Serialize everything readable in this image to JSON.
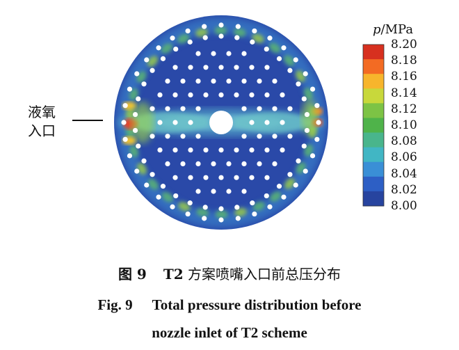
{
  "legend": {
    "symbol": "p",
    "unit": "/MPa",
    "ticks": [
      "8.20",
      "8.18",
      "8.16",
      "8.14",
      "8.12",
      "8.10",
      "8.08",
      "8.06",
      "8.04",
      "8.02",
      "8.00"
    ],
    "colors": [
      "#d7301f",
      "#f36b23",
      "#f7b52c",
      "#c8d83b",
      "#7dc345",
      "#4fb34a",
      "#49b58c",
      "#41b6c4",
      "#3a8fd6",
      "#2d5fc5",
      "#27449f"
    ]
  },
  "annotation": {
    "line1": "液氧",
    "line2": "入口"
  },
  "caption": {
    "cn_label": "图 9",
    "cn_t2": "T2",
    "cn_text": " 方案喷嘴入口前总压分布",
    "en_label": "Fig. 9",
    "en_line1": "Total pressure distribution before",
    "en_line2": "nozzle inlet of T2 scheme"
  }
}
